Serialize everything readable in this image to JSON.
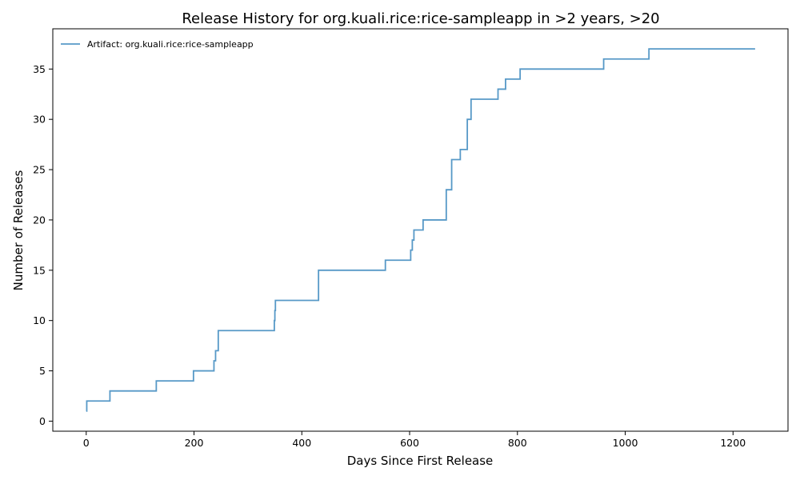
{
  "chart_data": {
    "type": "line",
    "step": true,
    "title": "Release History for org.kuali.rice:rice-sampleapp in >2 years, >20",
    "xlabel": "Days Since First Release",
    "ylabel": "Number of Releases",
    "xlim": [
      -62,
      1302
    ],
    "ylim": [
      -1,
      39
    ],
    "xticks": [
      0,
      200,
      400,
      600,
      800,
      1000,
      1200
    ],
    "yticks": [
      0,
      5,
      10,
      15,
      20,
      25,
      30,
      35
    ],
    "xtick_labels": [
      "0",
      "200",
      "400",
      "600",
      "800",
      "1000",
      "1200"
    ],
    "ytick_labels": [
      "0",
      "5",
      "10",
      "15",
      "20",
      "25",
      "30",
      "35"
    ],
    "grid": false,
    "legend_position": "top-left",
    "line_color": "#1f77b4",
    "series": [
      {
        "name": "Artifact: org.kuali.rice:rice-sampleapp",
        "x": [
          0,
          1,
          44,
          130,
          199,
          237,
          240,
          245,
          349,
          350,
          351,
          431,
          555,
          602,
          605,
          608,
          611,
          625,
          668,
          678,
          694,
          707,
          714,
          764,
          778,
          805,
          960,
          1044,
          1241
        ],
        "y": [
          1,
          2,
          3,
          4,
          5,
          6,
          7,
          9,
          10,
          11,
          12,
          15,
          16,
          17,
          18,
          19,
          19,
          20,
          23,
          26,
          27,
          30,
          32,
          33,
          34,
          35,
          36,
          37,
          37
        ]
      }
    ]
  }
}
